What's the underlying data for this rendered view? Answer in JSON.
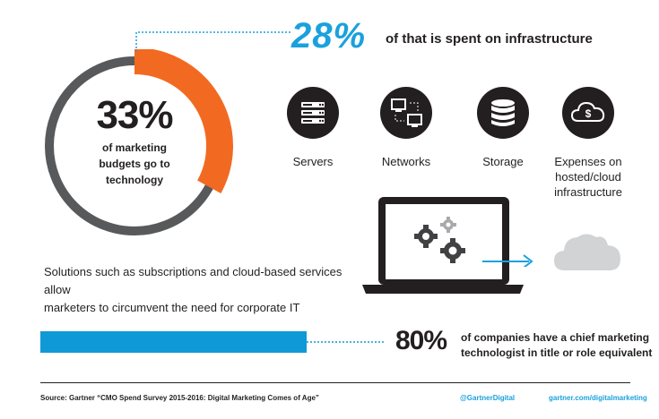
{
  "colors": {
    "accent_orange": "#f26a21",
    "ring_gray": "#58595b",
    "accent_blue": "#1aa1dd",
    "bar_blue": "#0f99d6",
    "dark": "#231f20",
    "cloud_gray": "#d1d3d4"
  },
  "budget": {
    "percent": "33%",
    "caption_line1": "of marketing",
    "caption_line2": "budgets go to",
    "caption_line3": "technology",
    "fraction": 0.33
  },
  "infrastructure": {
    "percent": "28%",
    "caption": "of that is spent on infrastructure"
  },
  "categories": [
    {
      "icon": "servers-icon",
      "label": "Servers"
    },
    {
      "icon": "networks-icon",
      "label": "Networks"
    },
    {
      "icon": "storage-icon",
      "label": "Storage"
    },
    {
      "icon": "cloud-dollar-icon",
      "label_line1": "Expenses on",
      "label_line2": "hosted/cloud",
      "label_line3": "infrastructure"
    }
  ],
  "solutions": {
    "line1": "Solutions such as subscriptions and cloud-based services allow",
    "line2": "marketers to circumvent the need for corporate IT"
  },
  "technologist": {
    "percent": "80%",
    "fraction": 0.8,
    "caption_line1": "of companies have a chief marketing",
    "caption_line2": "technologist in title or role equivalent"
  },
  "footer": {
    "source": "Source: Gartner “CMO Spend Survey 2015-2016: Digital Marketing Comes of Age”",
    "handle": "@GartnerDigital",
    "url": "gartner.com/digitalmarketing"
  }
}
